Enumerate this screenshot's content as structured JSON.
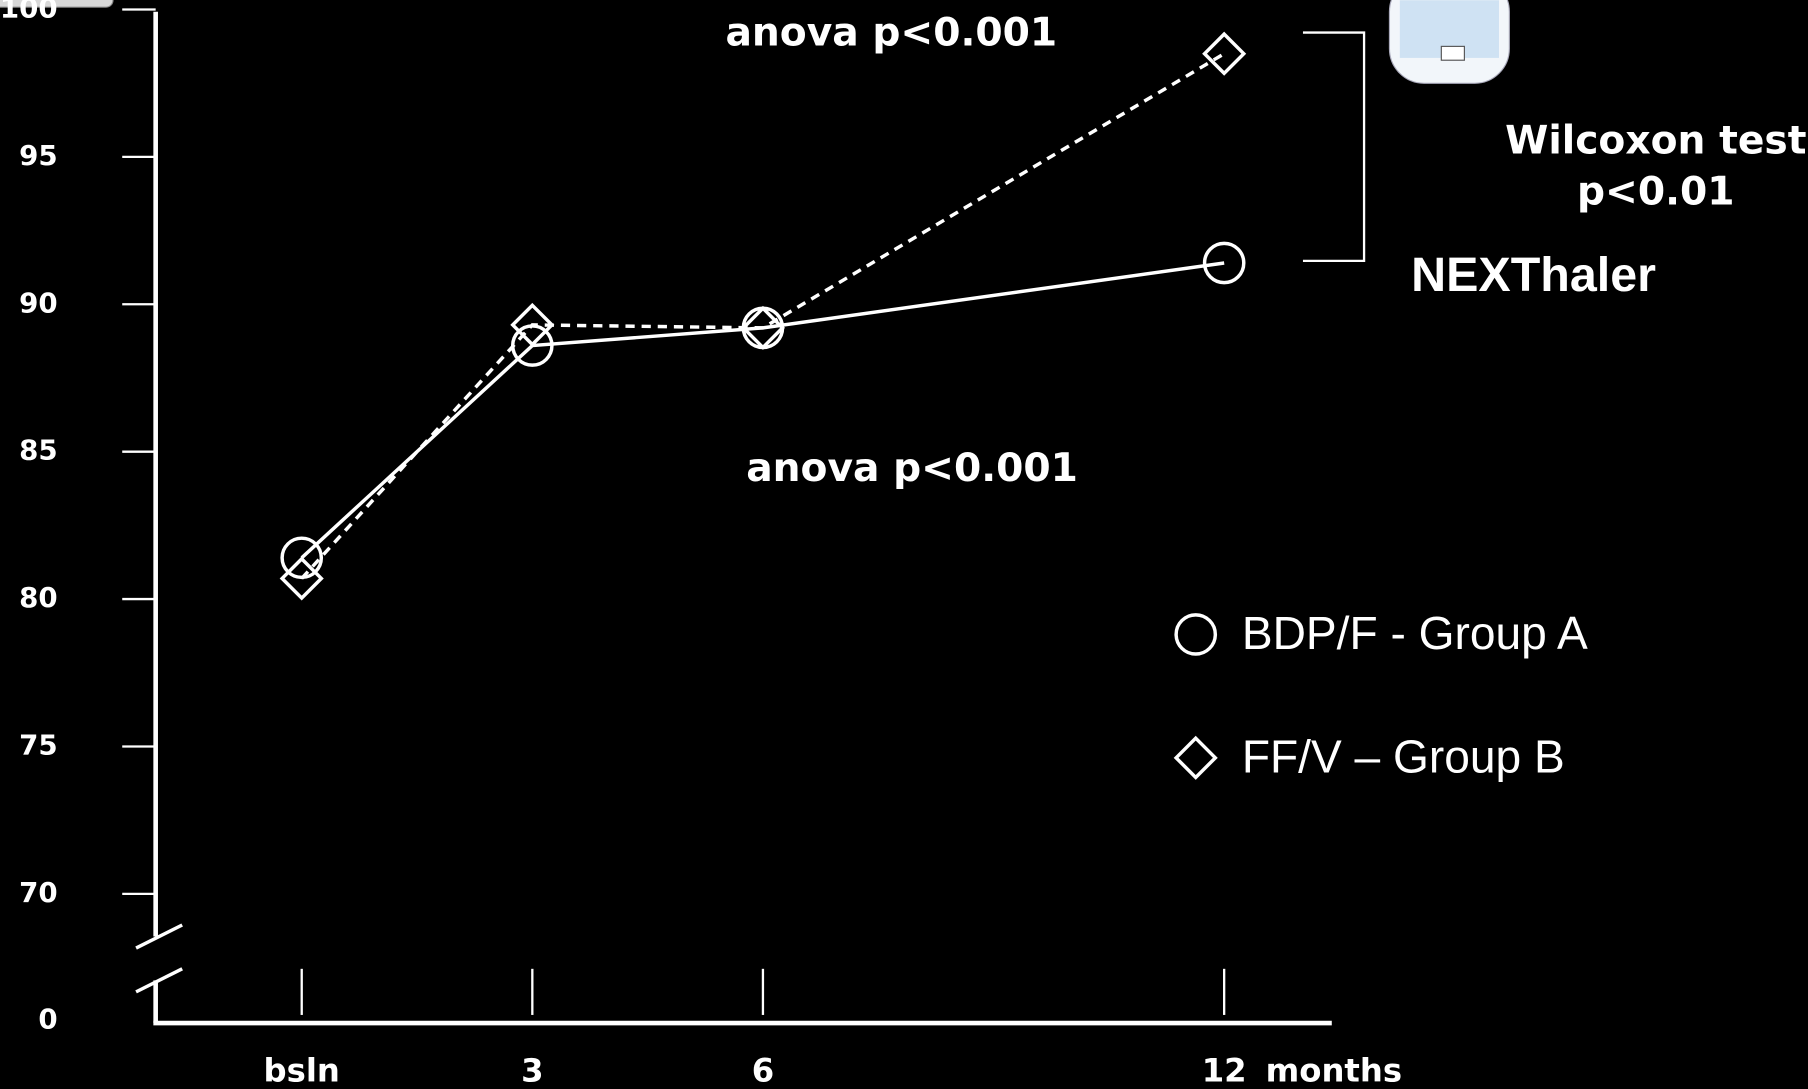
{
  "chart_data": {
    "type": "line",
    "x": [
      0,
      3,
      6,
      12
    ],
    "xlim": [
      -1.9,
      13.4
    ],
    "xticks": [
      {
        "value": 0,
        "label": "bsln"
      },
      3,
      6,
      12
    ],
    "x_label": "months",
    "ylim": [
      70,
      100
    ],
    "y_break": true,
    "yticks": [
      0,
      70,
      75,
      80,
      85,
      90,
      95,
      100
    ],
    "series": [
      {
        "name": "BDP/F -  Group A",
        "color": "#ffffff",
        "marker": "circle",
        "dashed": false,
        "values": [
          81.4,
          88.6,
          89.2,
          91.4
        ]
      },
      {
        "name": "FF/V – Group B",
        "color": "#ffffff",
        "marker": "diamond",
        "dashed": true,
        "values": [
          80.7,
          89.3,
          89.2,
          98.5
        ]
      }
    ],
    "annotations": [
      "anova p<0.001",
      "anova p<0.001",
      "Wilcoxon test",
      "p<0.01",
      "NEXThaler"
    ]
  }
}
